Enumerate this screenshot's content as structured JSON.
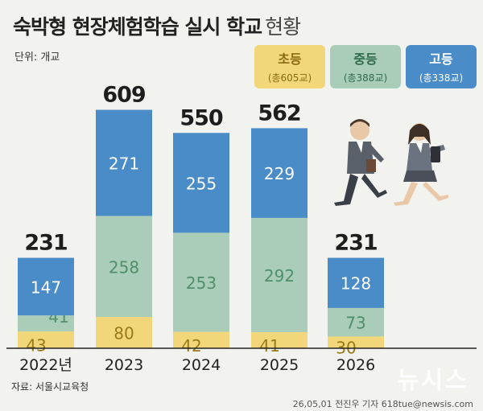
{
  "title": "숙박형 현장체험학습 실시 학교",
  "title_suffix": "현황",
  "unit": "단위: 개교",
  "legend": [
    {
      "name": "초등",
      "total": "(총605교)",
      "color": "#f2d77a"
    },
    {
      "name": "중등",
      "total": "(총388교)",
      "color": "#a9cdb8"
    },
    {
      "name": "고등",
      "total": "(총338교)",
      "color": "#4a8cc8"
    }
  ],
  "source": "자료: 서울시교육청",
  "credit": "26,05,01 전진우 기자 618tue@newsis.com",
  "watermark": "뉴시스",
  "chart_data": {
    "type": "bar",
    "stacked": true,
    "categories": [
      "2022년",
      "2023",
      "2024",
      "2025",
      "2026"
    ],
    "series": [
      {
        "name": "초등",
        "values": [
          43,
          80,
          42,
          41,
          30
        ],
        "color": "#f2d77a"
      },
      {
        "name": "중등",
        "values": [
          41,
          258,
          253,
          292,
          73
        ],
        "color": "#a9cdb8"
      },
      {
        "name": "고등",
        "values": [
          147,
          271,
          255,
          229,
          128
        ],
        "color": "#4a8cc8"
      }
    ],
    "totals": [
      231,
      609,
      550,
      562,
      231
    ],
    "title": "숙박형 현장체험학습 실시 학교 현황",
    "ylabel": "단위: 개교",
    "ylim": [
      0,
      650
    ]
  }
}
